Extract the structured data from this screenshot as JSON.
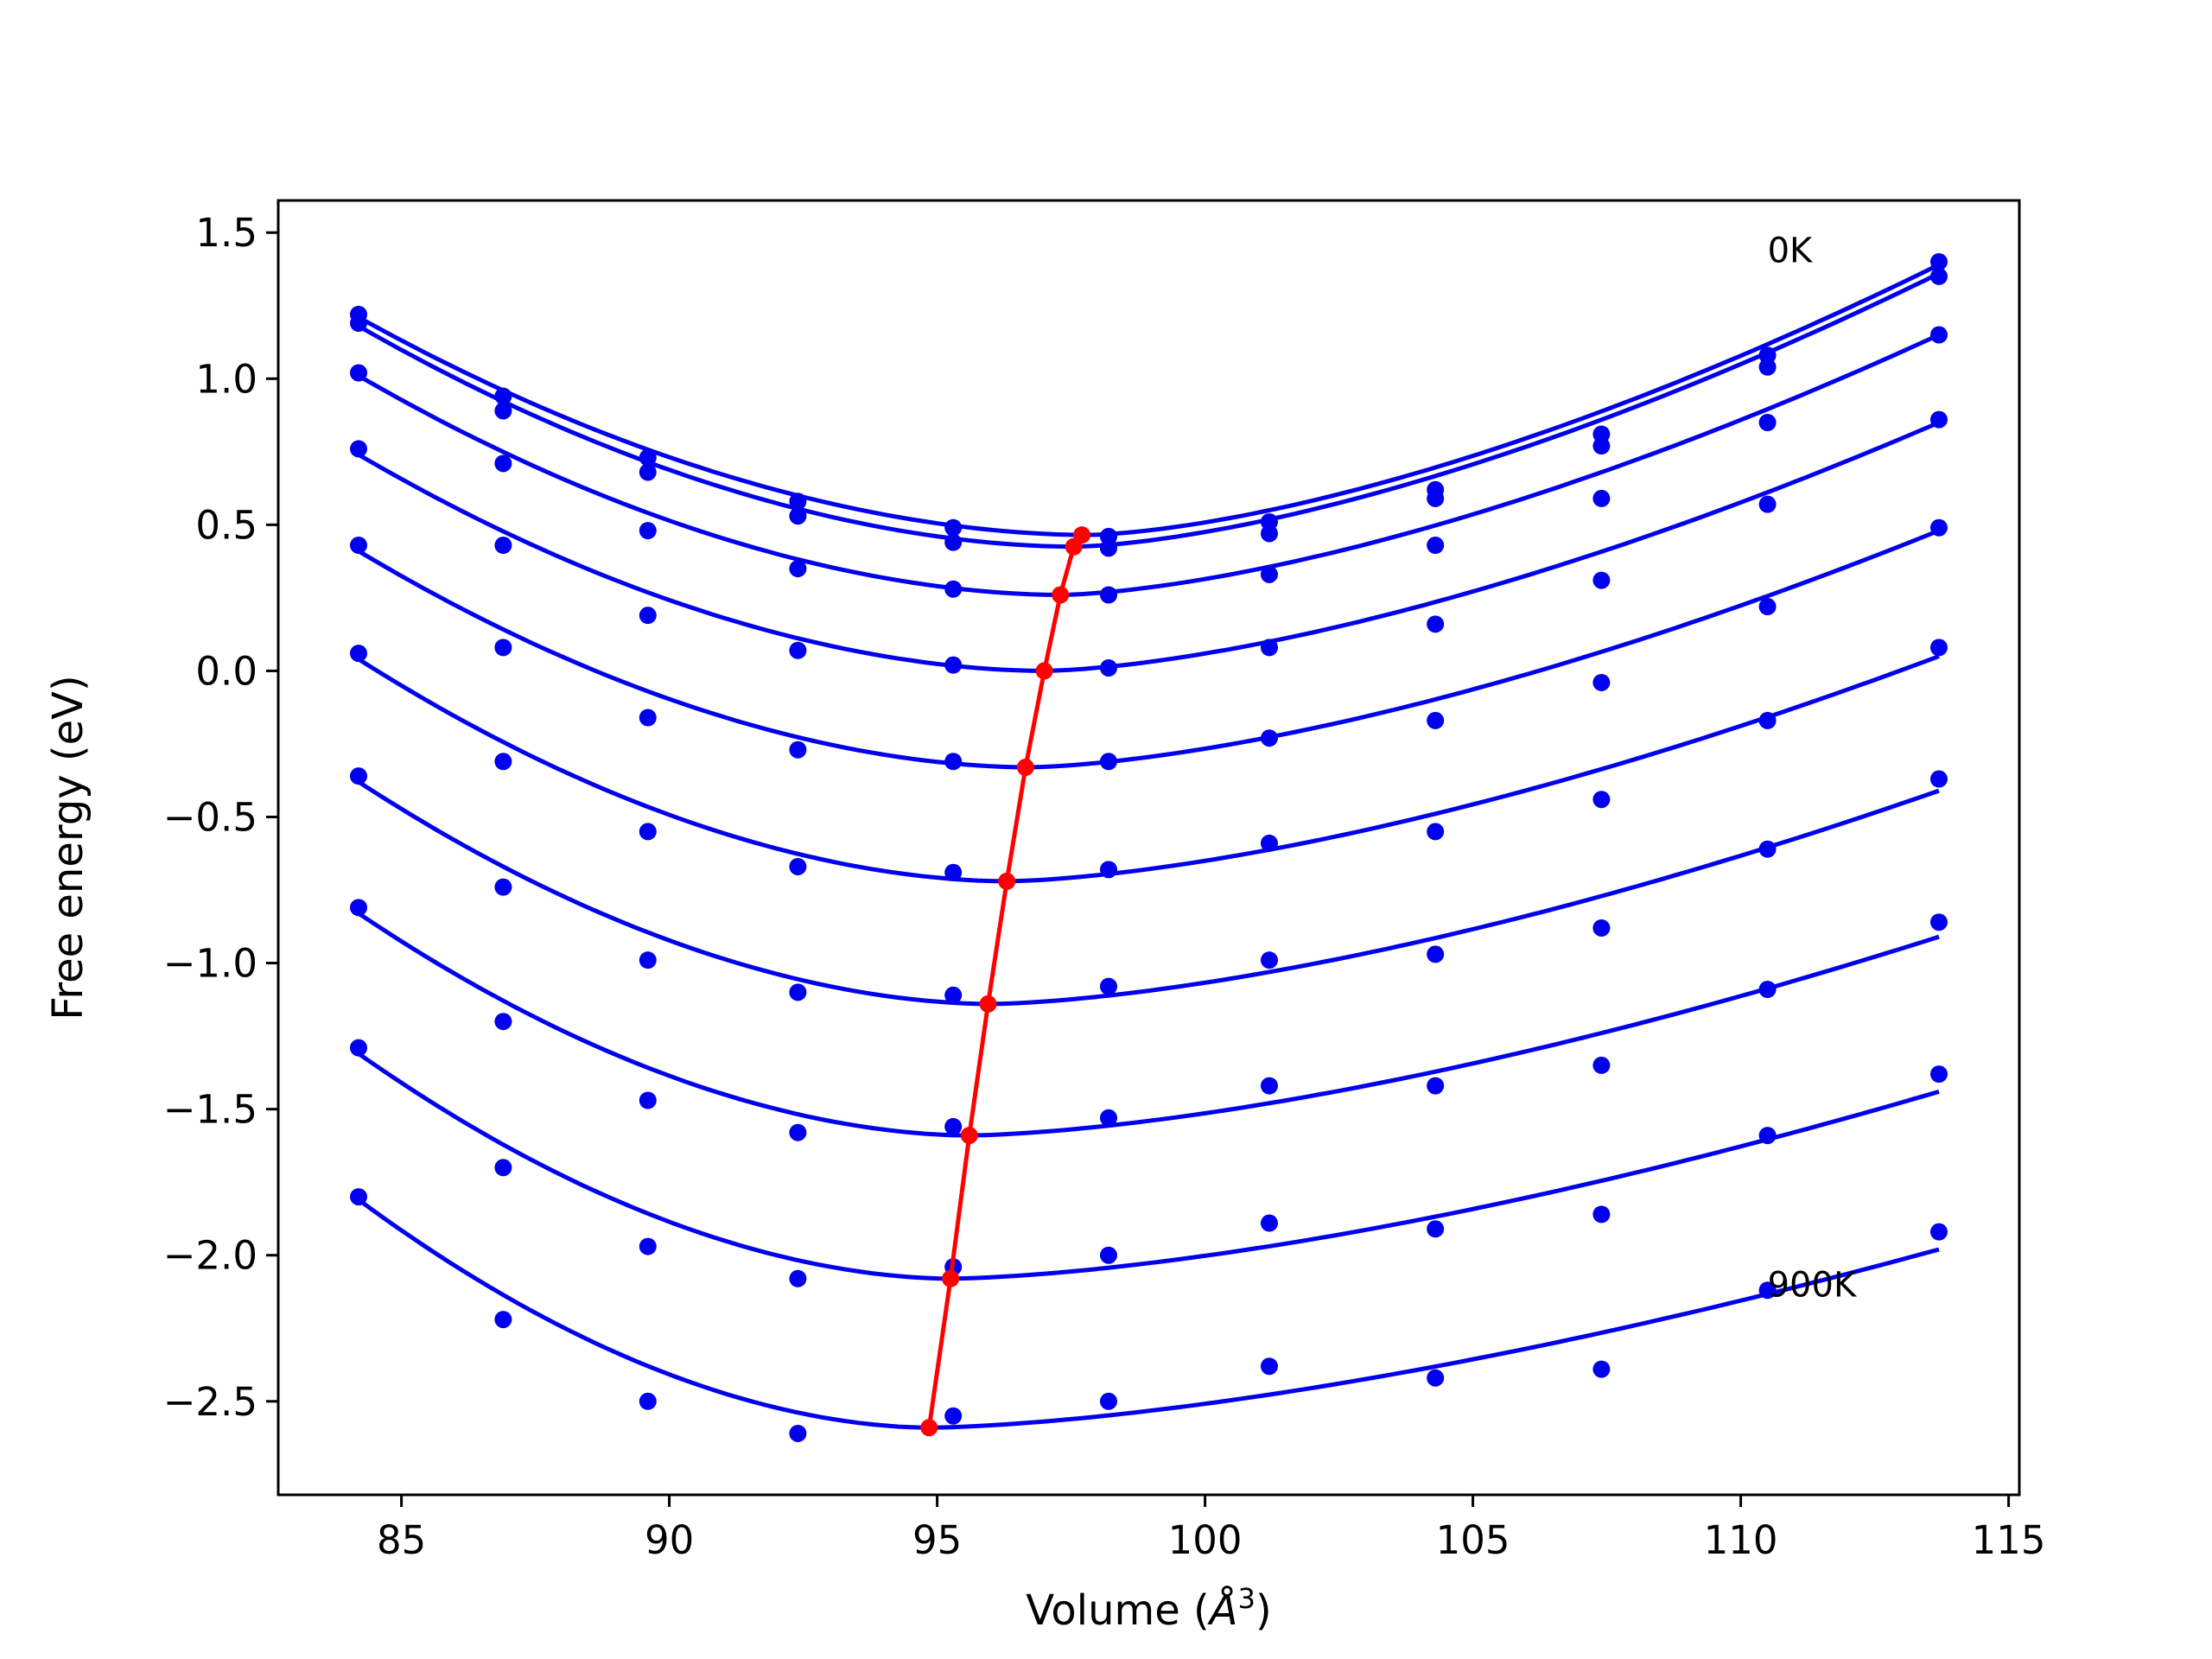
{
  "chart_data": {
    "type": "line",
    "xlabel_main": "Volume (",
    "xlabel_unit": "Å",
    "xlabel_sup": "3",
    "xlabel_end": ")",
    "ylabel": "Free energy (eV)",
    "xlim": [
      82.7,
      115.2
    ],
    "ylim": [
      -2.82,
      1.61
    ],
    "xticks": [
      85,
      90,
      95,
      100,
      105,
      110,
      115
    ],
    "xtick_labels": [
      "85",
      "90",
      "95",
      "100",
      "105",
      "110",
      "115"
    ],
    "yticks": [
      1.5,
      1.0,
      0.5,
      0.0,
      -0.5,
      -1.0,
      -1.5,
      -2.0,
      -2.5
    ],
    "ytick_labels": [
      "1.5",
      "1.0",
      "0.5",
      "0.0",
      "−0.5",
      "−1.0",
      "−1.5",
      "−2.0",
      "−2.5"
    ],
    "annotations": [
      {
        "text": "0K",
        "x": 110.5,
        "y": 1.44
      },
      {
        "text": "900K",
        "x": 110.5,
        "y": -2.1
      }
    ],
    "volumes": [
      84.2,
      86.9,
      89.6,
      92.4,
      95.3,
      98.2,
      101.2,
      104.3,
      107.4,
      110.5,
      113.7
    ],
    "series": [
      {
        "points": [
          1.22,
          0.94,
          0.73,
          0.58,
          0.49,
          0.46,
          0.51,
          0.62,
          0.81,
          1.08,
          1.4
        ],
        "fit_min": [
          97.8,
          0.465
        ]
      },
      {
        "points": [
          1.19,
          0.89,
          0.68,
          0.53,
          0.44,
          0.42,
          0.47,
          0.59,
          0.77,
          1.04,
          1.35
        ],
        "fit_min": [
          97.55,
          0.425
        ]
      },
      {
        "points": [
          1.02,
          0.71,
          0.48,
          0.35,
          0.28,
          0.26,
          0.33,
          0.43,
          0.59,
          0.85,
          1.15
        ],
        "fit_min": [
          97.3,
          0.26
        ]
      },
      {
        "points": [
          0.76,
          0.43,
          0.19,
          0.07,
          0.02,
          0.01,
          0.08,
          0.16,
          0.31,
          0.57,
          0.86
        ],
        "fit_min": [
          97.0,
          0.0
        ]
      },
      {
        "points": [
          0.43,
          0.08,
          -0.16,
          -0.27,
          -0.31,
          -0.31,
          -0.23,
          -0.17,
          -0.04,
          0.22,
          0.49
        ],
        "fit_min": [
          96.7,
          -0.33
        ]
      },
      {
        "points": [
          0.06,
          -0.31,
          -0.55,
          -0.67,
          -0.69,
          -0.68,
          -0.59,
          -0.55,
          -0.44,
          -0.17,
          0.08
        ],
        "fit_min": [
          96.3,
          -0.72
        ]
      },
      {
        "points": [
          -0.36,
          -0.74,
          -0.99,
          -1.1,
          -1.11,
          -1.08,
          -0.99,
          -0.97,
          -0.88,
          -0.61,
          -0.37
        ],
        "fit_min": [
          96.0,
          -1.14
        ]
      },
      {
        "points": [
          -0.81,
          -1.2,
          -1.47,
          -1.58,
          -1.56,
          -1.53,
          -1.42,
          -1.42,
          -1.35,
          -1.09,
          -0.86
        ],
        "fit_min": [
          95.6,
          -1.59
        ]
      },
      {
        "points": [
          -1.29,
          -1.7,
          -1.97,
          -2.08,
          -2.04,
          -2.0,
          -1.89,
          -1.91,
          -1.86,
          -1.59,
          -1.38
        ],
        "fit_min": [
          95.25,
          -2.08
        ]
      },
      {
        "points": [
          -1.8,
          -2.22,
          -2.5,
          -2.61,
          -2.55,
          -2.5,
          -2.38,
          -2.42,
          -2.39,
          -2.12,
          -1.92
        ],
        "fit_min": [
          94.85,
          -2.59
        ]
      }
    ],
    "fit_ends": [
      [
        1.21,
        1.39
      ],
      [
        1.18,
        1.36
      ],
      [
        1.01,
        1.15
      ],
      [
        0.74,
        0.85
      ],
      [
        0.41,
        0.48
      ],
      [
        0.04,
        0.05
      ],
      [
        -0.38,
        -0.41
      ],
      [
        -0.83,
        -0.91
      ],
      [
        -1.31,
        -1.44
      ],
      [
        -1.81,
        -1.98
      ]
    ],
    "minima_path": {
      "x": [
        97.7,
        97.55,
        97.3,
        97.0,
        96.65,
        96.3,
        95.95,
        95.6,
        95.25,
        94.85
      ],
      "y": [
        0.465,
        0.425,
        0.26,
        0.0,
        -0.33,
        -0.72,
        -1.14,
        -1.59,
        -2.08,
        -2.59
      ]
    },
    "colors": {
      "series": "#0000ee",
      "minima": "#ff0000",
      "axes": "#000000"
    }
  }
}
